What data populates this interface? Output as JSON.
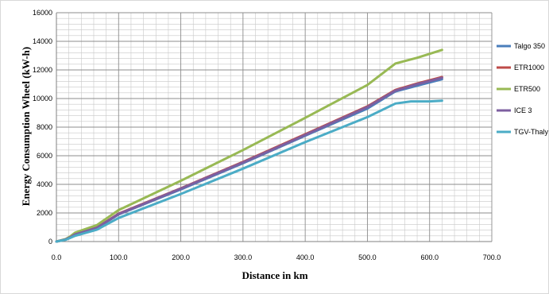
{
  "chart_data": {
    "type": "line",
    "title": "",
    "xlabel": "Distance in km",
    "ylabel": "Energy Consumption Wheel (kW-h)",
    "xlim": [
      0,
      700
    ],
    "ylim": [
      0,
      16000
    ],
    "xticks": [
      "0.0",
      "100.0",
      "200.0",
      "300.0",
      "400.0",
      "500.0",
      "600.0",
      "700.0"
    ],
    "yticks": [
      "0",
      "2000",
      "4000",
      "6000",
      "8000",
      "10000",
      "12000",
      "14000",
      "16000"
    ],
    "grid": true,
    "legend_position": "right",
    "series": [
      {
        "name": "Talgo 350",
        "color": "#4a7ebb",
        "points": [
          [
            0,
            0
          ],
          [
            15,
            150
          ],
          [
            22,
            300
          ],
          [
            30,
            500
          ],
          [
            65,
            950
          ],
          [
            100,
            1900
          ],
          [
            200,
            3650
          ],
          [
            300,
            5480
          ],
          [
            400,
            7400
          ],
          [
            500,
            9300
          ],
          [
            545,
            10500
          ],
          [
            580,
            10900
          ],
          [
            620,
            11350
          ]
        ]
      },
      {
        "name": "ETR1000",
        "color": "#be4b48",
        "points": [
          [
            0,
            0
          ],
          [
            15,
            150
          ],
          [
            22,
            300
          ],
          [
            30,
            520
          ],
          [
            65,
            980
          ],
          [
            100,
            1950
          ],
          [
            200,
            3720
          ],
          [
            300,
            5570
          ],
          [
            400,
            7500
          ],
          [
            500,
            9450
          ],
          [
            545,
            10600
          ],
          [
            580,
            11050
          ],
          [
            620,
            11500
          ]
        ]
      },
      {
        "name": "ETR500",
        "color": "#98b954",
        "points": [
          [
            0,
            0
          ],
          [
            15,
            180
          ],
          [
            22,
            350
          ],
          [
            30,
            620
          ],
          [
            65,
            1150
          ],
          [
            100,
            2200
          ],
          [
            200,
            4250
          ],
          [
            300,
            6400
          ],
          [
            400,
            8650
          ],
          [
            500,
            10950
          ],
          [
            545,
            12450
          ],
          [
            580,
            12850
          ],
          [
            620,
            13400
          ]
        ]
      },
      {
        "name": "ICE 3",
        "color": "#7d5fa0",
        "points": [
          [
            0,
            0
          ],
          [
            15,
            150
          ],
          [
            22,
            290
          ],
          [
            30,
            500
          ],
          [
            65,
            960
          ],
          [
            100,
            1920
          ],
          [
            200,
            3700
          ],
          [
            300,
            5530
          ],
          [
            400,
            7450
          ],
          [
            500,
            9400
          ],
          [
            545,
            10550
          ],
          [
            580,
            11000
          ],
          [
            620,
            11450
          ]
        ]
      },
      {
        "name": "TGV-Thalys",
        "color": "#4bacc6",
        "points": [
          [
            0,
            0
          ],
          [
            15,
            120
          ],
          [
            22,
            250
          ],
          [
            30,
            400
          ],
          [
            65,
            830
          ],
          [
            100,
            1650
          ],
          [
            200,
            3330
          ],
          [
            300,
            5100
          ],
          [
            400,
            6950
          ],
          [
            500,
            8700
          ],
          [
            545,
            9650
          ],
          [
            570,
            9800
          ],
          [
            600,
            9800
          ],
          [
            620,
            9850
          ]
        ]
      }
    ]
  }
}
